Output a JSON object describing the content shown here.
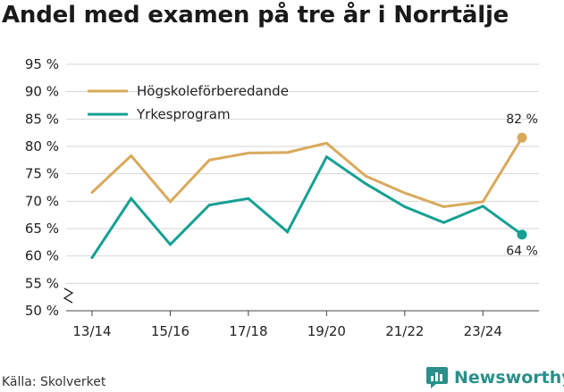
{
  "title": "Andel med examen på tre år i Norrtälje",
  "source": "Källa: Skolverket",
  "brand": {
    "name": "Newsworthy",
    "icon": "bar-chart-speech-icon",
    "color": "#2b8f8a"
  },
  "chart_data": {
    "type": "line",
    "title": "Andel med examen på tre år i Norrtälje",
    "xlabel": "",
    "ylabel": "",
    "x": [
      "13/14",
      "14/15",
      "15/16",
      "16/17",
      "17/18",
      "18/19",
      "19/20",
      "20/21",
      "21/22",
      "22/23",
      "23/24",
      "24/25"
    ],
    "x_tick_labels": [
      "13/14",
      "15/16",
      "17/18",
      "19/20",
      "21/22",
      "23/24"
    ],
    "ylim": [
      50,
      95
    ],
    "y_ticks": [
      50,
      55,
      60,
      65,
      70,
      75,
      80,
      85,
      90,
      95
    ],
    "y_tick_labels": [
      "50 %",
      "55 %",
      "60 %",
      "65 %",
      "70 %",
      "75 %",
      "80 %",
      "85 %",
      "90 %",
      "95 %"
    ],
    "y_axis_break": true,
    "grid": true,
    "legend": "top-left",
    "series": [
      {
        "name": "Högskoleförberedande",
        "color": "#d9a95c",
        "values": [
          71.6,
          78.3,
          69.9,
          77.5,
          78.8,
          78.9,
          80.6,
          74.6,
          71.5,
          69.0,
          69.9,
          81.6
        ],
        "end_label": "82 %"
      },
      {
        "name": "Yrkesprogram",
        "color": "#16a093",
        "values": [
          59.7,
          70.5,
          62.1,
          69.3,
          70.5,
          64.4,
          78.1,
          73.2,
          69.0,
          66.1,
          69.1,
          63.9
        ],
        "end_label": "64 %"
      }
    ]
  }
}
